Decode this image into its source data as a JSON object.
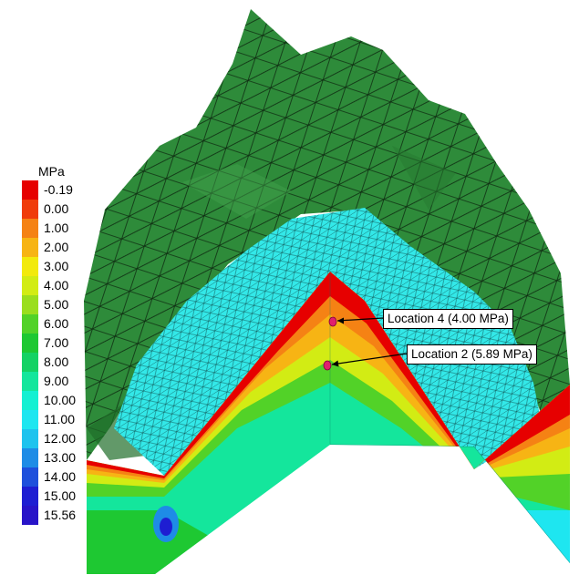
{
  "legend": {
    "unit": "MPa",
    "entries": [
      {
        "label": "-0.19",
        "color": "#e60000"
      },
      {
        "label": "0.00",
        "color": "#f03c0a"
      },
      {
        "label": "1.00",
        "color": "#f58214"
      },
      {
        "label": "2.00",
        "color": "#f7b414"
      },
      {
        "label": "3.00",
        "color": "#f2ea0c"
      },
      {
        "label": "4.00",
        "color": "#d2ec14"
      },
      {
        "label": "5.00",
        "color": "#9ade1e"
      },
      {
        "label": "6.00",
        "color": "#52d228"
      },
      {
        "label": "7.00",
        "color": "#1ec832"
      },
      {
        "label": "8.00",
        "color": "#14d264"
      },
      {
        "label": "9.00",
        "color": "#14e69c"
      },
      {
        "label": "10.00",
        "color": "#14f0d2"
      },
      {
        "label": "11.00",
        "color": "#1ee6f0"
      },
      {
        "label": "12.00",
        "color": "#1ec3ee"
      },
      {
        "label": "13.00",
        "color": "#1e8ce6"
      },
      {
        "label": "14.00",
        "color": "#1e50dc"
      },
      {
        "label": "15.00",
        "color": "#1e1ed2"
      },
      {
        "label": "15.56",
        "color": "#2814c8"
      }
    ]
  },
  "annotations": [
    {
      "label": "Location 4 (4.00 MPa)"
    },
    {
      "label": "Location 2 (5.89 MPa)"
    }
  ],
  "colors": {
    "terrain": "#2e8b3a",
    "terrain_mesh": "#0f2e12",
    "fill": "#33e8e8",
    "marker": "#e0206e"
  }
}
